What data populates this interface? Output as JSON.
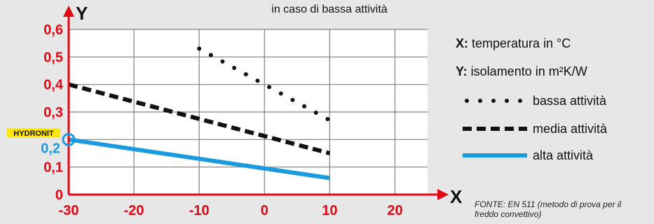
{
  "subtitle": "in caso di bassa attività",
  "axes": {
    "x_name": "X",
    "y_name": "Y",
    "x_legend_key": "X:",
    "x_legend_text": " temperatura in °C",
    "y_legend_key": "Y:",
    "y_legend_text": " isolamento in m²K/W"
  },
  "highlight": {
    "badge": "HYDRONIT",
    "value_label": "0,2"
  },
  "source_note": {
    "line1": "FONTE: EN 511 (metodo di prova per il",
    "line2": "freddo convettivo)"
  },
  "colors": {
    "axis": "#e30613",
    "grid": "#7f7f7f",
    "plot_bg": "#ffffff",
    "text": "#111111",
    "high_series": "#1a9be0",
    "badge_bg": "#ffe600"
  },
  "chart_data": {
    "type": "line",
    "xlim": [
      -30,
      25
    ],
    "ylim": [
      0,
      0.6
    ],
    "x_ticks": [
      {
        "value": -30,
        "label": "-30"
      },
      {
        "value": -20,
        "label": "-20"
      },
      {
        "value": -10,
        "label": "-10"
      },
      {
        "value": 0,
        "label": "0"
      },
      {
        "value": 10,
        "label": "10"
      },
      {
        "value": 20,
        "label": "20"
      }
    ],
    "y_ticks": [
      {
        "value": 0,
        "label": "0"
      },
      {
        "value": 0.1,
        "label": "0,1"
      },
      {
        "value": 0.2,
        "label": "0,2"
      },
      {
        "value": 0.3,
        "label": "0,3"
      },
      {
        "value": 0.4,
        "label": "0,4"
      },
      {
        "value": 0.5,
        "label": "0,5"
      },
      {
        "value": 0.6,
        "label": "0,6"
      }
    ],
    "grid": true,
    "legend_placement": "right",
    "series": [
      {
        "name": "bassa attività",
        "style": "dotted",
        "color": "#111111",
        "x": [
          -10,
          10
        ],
        "y": [
          0.53,
          0.27
        ]
      },
      {
        "name": "media attività",
        "style": "dashed",
        "color": "#111111",
        "x": [
          -30,
          10
        ],
        "y": [
          0.4,
          0.15
        ]
      },
      {
        "name": "alta attività",
        "style": "solid",
        "color": "#1a9be0",
        "x": [
          -30,
          10
        ],
        "y": [
          0.2,
          0.06
        ]
      }
    ],
    "highlight_point": {
      "x": -30,
      "y": 0.2
    }
  }
}
